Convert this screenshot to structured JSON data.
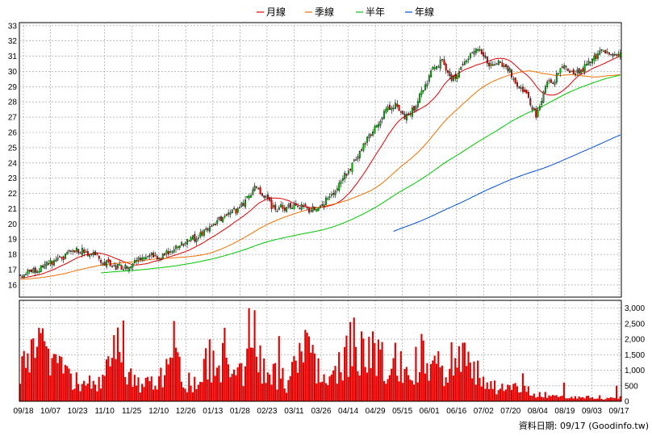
{
  "chart_data": {
    "type": "candlestick",
    "legend": [
      {
        "name": "月線",
        "color": "#e00000"
      },
      {
        "name": "季線",
        "color": "#f07000"
      },
      {
        "name": "半年",
        "color": "#00c800"
      },
      {
        "name": "年線",
        "color": "#0050d0"
      }
    ],
    "price_axis": {
      "ticks": [
        16,
        17,
        18,
        19,
        20,
        21,
        22,
        23,
        24,
        25,
        26,
        27,
        28,
        29,
        30,
        31,
        32,
        33
      ],
      "ylim": [
        15.2,
        33.2
      ]
    },
    "volume_axis": {
      "ticks": [
        0,
        500,
        1000,
        1500,
        2000,
        2500,
        3000
      ],
      "tick_labels": [
        "0",
        "500",
        "1,000",
        "1,500",
        "2,000",
        "2,500",
        "3,000"
      ],
      "ylim": [
        0,
        3250
      ]
    },
    "x_tick_labels": [
      "09/18",
      "10/07",
      "10/23",
      "11/10",
      "11/25",
      "12/10",
      "12/26",
      "01/13",
      "01/28",
      "02/23",
      "03/11",
      "03/26",
      "04/14",
      "04/29",
      "05/15",
      "06/01",
      "06/16",
      "07/02",
      "07/20",
      "08/04",
      "08/19",
      "09/03",
      "09/17"
    ],
    "close_anchors": [
      [
        0,
        16.6
      ],
      [
        5,
        16.8
      ],
      [
        10,
        17.0
      ],
      [
        15,
        17.4
      ],
      [
        20,
        17.6
      ],
      [
        25,
        18.0
      ],
      [
        30,
        18.3
      ],
      [
        35,
        18.2
      ],
      [
        40,
        17.9
      ],
      [
        45,
        17.5
      ],
      [
        50,
        17.2
      ],
      [
        55,
        17.1
      ],
      [
        60,
        17.5
      ],
      [
        65,
        17.7
      ],
      [
        70,
        17.9
      ],
      [
        75,
        17.9
      ],
      [
        80,
        18.3
      ],
      [
        85,
        18.6
      ],
      [
        90,
        18.9
      ],
      [
        95,
        19.2
      ],
      [
        100,
        19.6
      ],
      [
        105,
        20.2
      ],
      [
        110,
        20.6
      ],
      [
        115,
        20.8
      ],
      [
        120,
        21.5
      ],
      [
        125,
        22.5
      ],
      [
        130,
        21.8
      ],
      [
        135,
        21.0
      ],
      [
        140,
        21.1
      ],
      [
        145,
        21.0
      ],
      [
        150,
        21.3
      ],
      [
        155,
        20.9
      ],
      [
        160,
        21.1
      ],
      [
        165,
        21.8
      ],
      [
        170,
        22.6
      ],
      [
        175,
        23.5
      ],
      [
        180,
        24.6
      ],
      [
        185,
        25.6
      ],
      [
        190,
        26.5
      ],
      [
        195,
        27.4
      ],
      [
        200,
        27.8
      ],
      [
        205,
        26.9
      ],
      [
        210,
        27.6
      ],
      [
        215,
        28.9
      ],
      [
        220,
        30.1
      ],
      [
        225,
        30.7
      ],
      [
        230,
        29.3
      ],
      [
        235,
        30.3
      ],
      [
        240,
        31.0
      ],
      [
        245,
        31.5
      ],
      [
        250,
        30.4
      ],
      [
        255,
        30.6
      ],
      [
        260,
        30.2
      ],
      [
        265,
        29.1
      ],
      [
        270,
        28.4
      ],
      [
        275,
        27.1
      ],
      [
        280,
        29.0
      ],
      [
        285,
        29.5
      ],
      [
        290,
        30.5
      ],
      [
        295,
        29.9
      ],
      [
        300,
        30.2
      ],
      [
        305,
        30.7
      ],
      [
        310,
        31.5
      ],
      [
        315,
        30.9
      ],
      [
        320,
        31.0
      ]
    ],
    "volume_anchors": [
      [
        0,
        900
      ],
      [
        8,
        1500
      ],
      [
        12,
        1800
      ],
      [
        18,
        1200
      ],
      [
        24,
        800
      ],
      [
        30,
        600
      ],
      [
        38,
        550
      ],
      [
        45,
        750
      ],
      [
        50,
        2100
      ],
      [
        54,
        1300
      ],
      [
        60,
        600
      ],
      [
        70,
        550
      ],
      [
        76,
        750
      ],
      [
        82,
        1800
      ],
      [
        86,
        700
      ],
      [
        90,
        600
      ],
      [
        96,
        650
      ],
      [
        100,
        1500
      ],
      [
        106,
        800
      ],
      [
        110,
        2100
      ],
      [
        114,
        700
      ],
      [
        120,
        900
      ],
      [
        125,
        1900
      ],
      [
        128,
        1200
      ],
      [
        134,
        800
      ],
      [
        138,
        800
      ],
      [
        142,
        600
      ],
      [
        146,
        1100
      ],
      [
        152,
        1600
      ],
      [
        156,
        1300
      ],
      [
        160,
        1000
      ],
      [
        165,
        800
      ],
      [
        170,
        1200
      ],
      [
        178,
        1800
      ],
      [
        184,
        1600
      ],
      [
        190,
        1400
      ],
      [
        196,
        1100
      ],
      [
        202,
        1400
      ],
      [
        208,
        1000
      ],
      [
        214,
        1400
      ],
      [
        218,
        1100
      ],
      [
        222,
        1200
      ],
      [
        226,
        800
      ],
      [
        232,
        1700
      ],
      [
        236,
        1400
      ],
      [
        240,
        1000
      ],
      [
        246,
        800
      ],
      [
        250,
        500
      ],
      [
        256,
        400
      ],
      [
        262,
        450
      ],
      [
        268,
        400
      ],
      [
        272,
        300
      ],
      [
        278,
        200
      ],
      [
        282,
        200
      ],
      [
        290,
        150
      ],
      [
        298,
        100
      ],
      [
        306,
        150
      ],
      [
        312,
        100
      ],
      [
        318,
        120
      ],
      [
        320,
        150
      ]
    ],
    "volume_spikes": [
      [
        55,
        2600
      ],
      [
        122,
        3000
      ],
      [
        138,
        2100
      ],
      [
        152,
        2300
      ],
      [
        182,
        2250
      ],
      [
        230,
        1900
      ],
      [
        268,
        900
      ],
      [
        290,
        600
      ],
      [
        318,
        500
      ]
    ],
    "candle_count": 321,
    "random_seed": 20250917,
    "ma_start_index": {
      "月線": 0,
      "季線": 0,
      "半年": 43,
      "年線": 199
    },
    "colors": {
      "up": "#00b400",
      "down": "#e00000",
      "volume": "#e00000",
      "grid": "#9a9a9a",
      "axis": "#000000"
    }
  },
  "footer": "資料日期: 09/17  (Goodinfo.tw)"
}
